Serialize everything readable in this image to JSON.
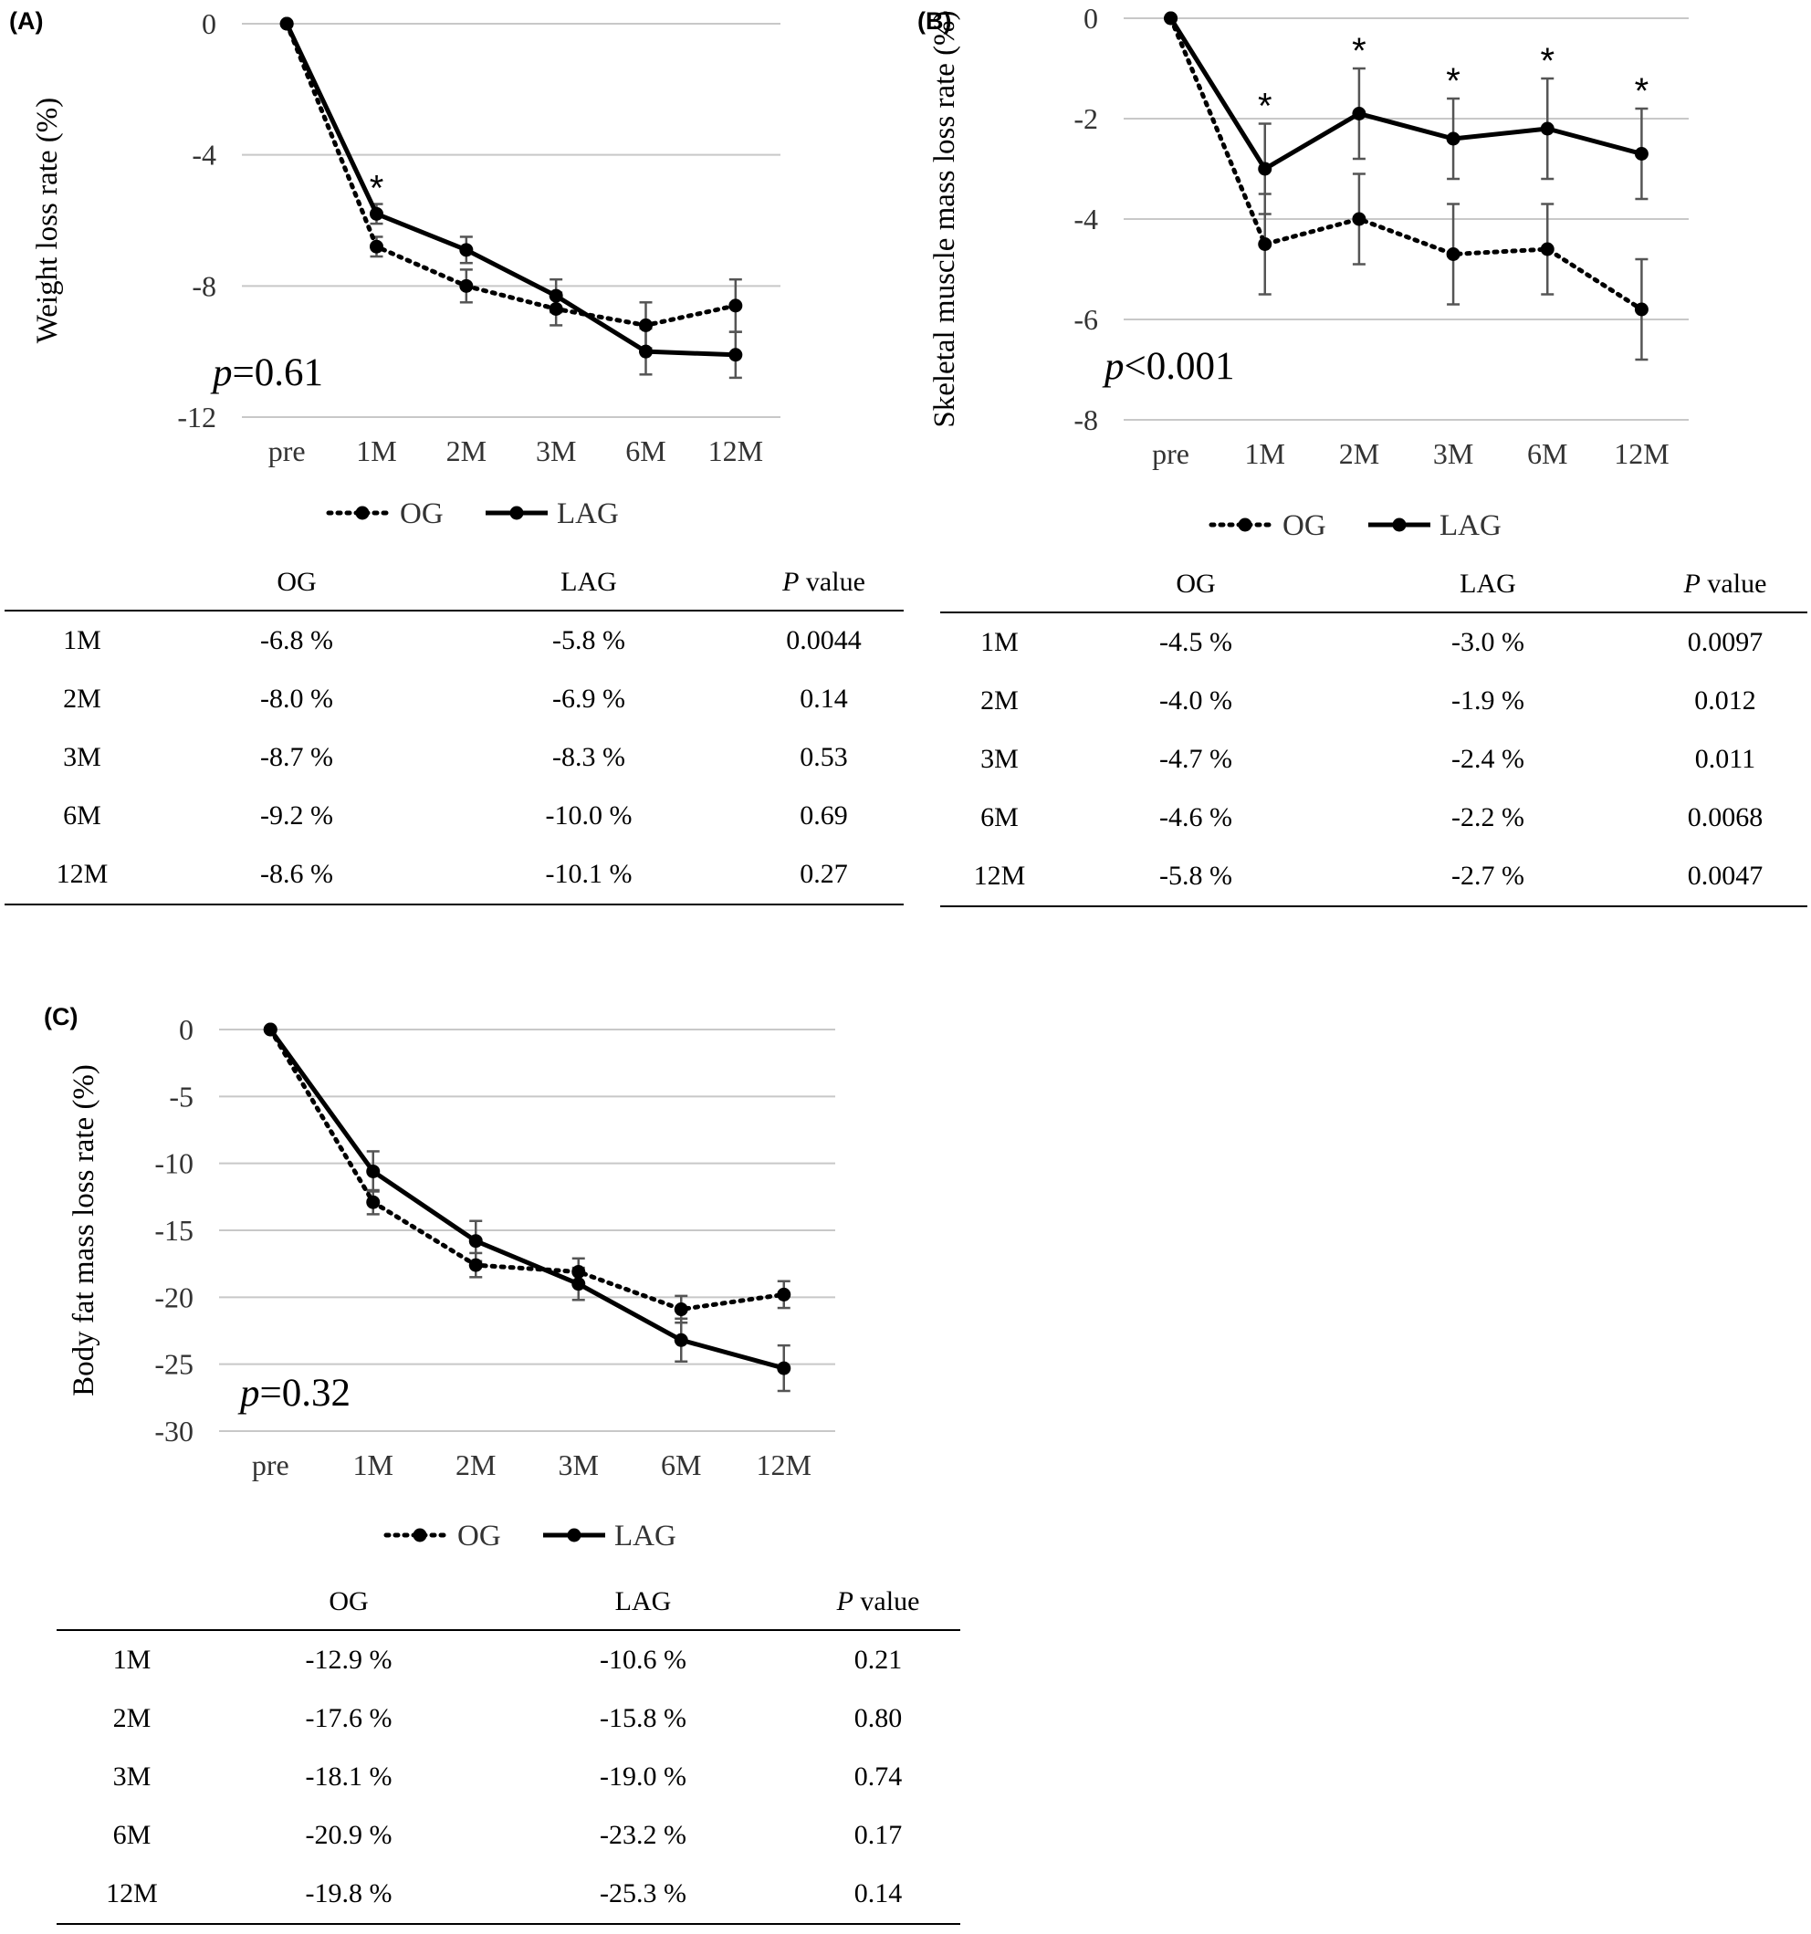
{
  "legend": {
    "og": "OG",
    "lag": "LAG"
  },
  "table_headers": {
    "group1": "OG",
    "group2": "LAG",
    "p_italic": "P",
    "p_rest": " value"
  },
  "chart_data": [
    {
      "id": "A",
      "panel_label": "(A)",
      "type": "line",
      "ylabel": "Weight  loss rate (%)",
      "categories": [
        "pre",
        "1M",
        "2M",
        "3M",
        "6M",
        "12M"
      ],
      "ylim": [
        -12,
        0
      ],
      "yticks": [
        0,
        -4,
        -8,
        -12
      ],
      "series": [
        {
          "name": "OG",
          "style": "dotted",
          "values": [
            0,
            -6.8,
            -8.0,
            -8.7,
            -9.2,
            -8.6
          ],
          "errors": [
            0,
            0.3,
            0.5,
            0.5,
            0.7,
            0.8
          ]
        },
        {
          "name": "LAG",
          "style": "solid",
          "values": [
            0,
            -5.8,
            -6.9,
            -8.3,
            -10.0,
            -10.1
          ],
          "errors": [
            0,
            0.3,
            0.4,
            0.5,
            0.7,
            0.7
          ]
        }
      ],
      "significant": [
        false,
        true,
        false,
        false,
        false,
        false
      ],
      "star": "*",
      "p_overall": {
        "p": "p",
        "text": "=0.61"
      },
      "table": [
        [
          "1M",
          "-6.8 %",
          "-5.8 %",
          "0.0044"
        ],
        [
          "2M",
          "-8.0 %",
          "-6.9 %",
          "0.14"
        ],
        [
          "3M",
          "-8.7 %",
          "-8.3 %",
          "0.53"
        ],
        [
          "6M",
          "-9.2 %",
          "-10.0 %",
          "0.69"
        ],
        [
          "12M",
          "-8.6 %",
          "-10.1 %",
          "0.27"
        ]
      ]
    },
    {
      "id": "B",
      "panel_label": "(B)",
      "type": "line",
      "ylabel": "Skeletal muscle mass loss rate (%)",
      "categories": [
        "pre",
        "1M",
        "2M",
        "3M",
        "6M",
        "12M"
      ],
      "ylim": [
        -8,
        0
      ],
      "yticks": [
        0,
        -2,
        -4,
        -6,
        -8
      ],
      "series": [
        {
          "name": "OG",
          "style": "dotted",
          "values": [
            0,
            -4.5,
            -4.0,
            -4.7,
            -4.6,
            -5.8
          ],
          "errors": [
            0,
            1.0,
            0.9,
            1.0,
            0.9,
            1.0
          ]
        },
        {
          "name": "LAG",
          "style": "solid",
          "values": [
            0,
            -3.0,
            -1.9,
            -2.4,
            -2.2,
            -2.7
          ],
          "errors": [
            0,
            0.9,
            0.9,
            0.8,
            1.0,
            0.9
          ]
        }
      ],
      "significant": [
        false,
        true,
        true,
        true,
        true,
        true
      ],
      "star": "*",
      "p_overall": {
        "p": "p",
        "text": "<0.001"
      },
      "table": [
        [
          "1M",
          "-4.5 %",
          "-3.0 %",
          "0.0097"
        ],
        [
          "2M",
          "-4.0 %",
          "-1.9 %",
          "0.012"
        ],
        [
          "3M",
          "-4.7 %",
          "-2.4 %",
          "0.011"
        ],
        [
          "6M",
          "-4.6 %",
          "-2.2 %",
          "0.0068"
        ],
        [
          "12M",
          "-5.8 %",
          "-2.7 %",
          "0.0047"
        ]
      ]
    },
    {
      "id": "C",
      "panel_label": "(C)",
      "type": "line",
      "ylabel": "Body fat mass loss rate (%)",
      "categories": [
        "pre",
        "1M",
        "2M",
        "3M",
        "6M",
        "12M"
      ],
      "ylim": [
        -30,
        0
      ],
      "yticks": [
        0,
        -5,
        -10,
        -15,
        -20,
        -25,
        -30
      ],
      "series": [
        {
          "name": "OG",
          "style": "dotted",
          "values": [
            0,
            -12.9,
            -17.6,
            -18.1,
            -20.9,
            -19.8
          ],
          "errors": [
            0,
            0.9,
            0.9,
            1.0,
            1.0,
            1.0
          ]
        },
        {
          "name": "LAG",
          "style": "solid",
          "values": [
            0,
            -10.6,
            -15.8,
            -19.0,
            -23.2,
            -25.3
          ],
          "errors": [
            0,
            1.5,
            1.5,
            1.2,
            1.6,
            1.7
          ]
        }
      ],
      "significant": [
        false,
        false,
        false,
        false,
        false,
        false
      ],
      "star": "*",
      "p_overall": {
        "p": "p",
        "text": "=0.32"
      },
      "table": [
        [
          "1M",
          "-12.9 %",
          "-10.6 %",
          "0.21"
        ],
        [
          "2M",
          "-17.6 %",
          "-15.8 %",
          "0.80"
        ],
        [
          "3M",
          "-18.1 %",
          "-19.0 %",
          "0.74"
        ],
        [
          "6M",
          "-20.9 %",
          "-23.2 %",
          "0.17"
        ],
        [
          "12M",
          "-19.8 %",
          "-25.3 %",
          "0.14"
        ]
      ]
    }
  ]
}
